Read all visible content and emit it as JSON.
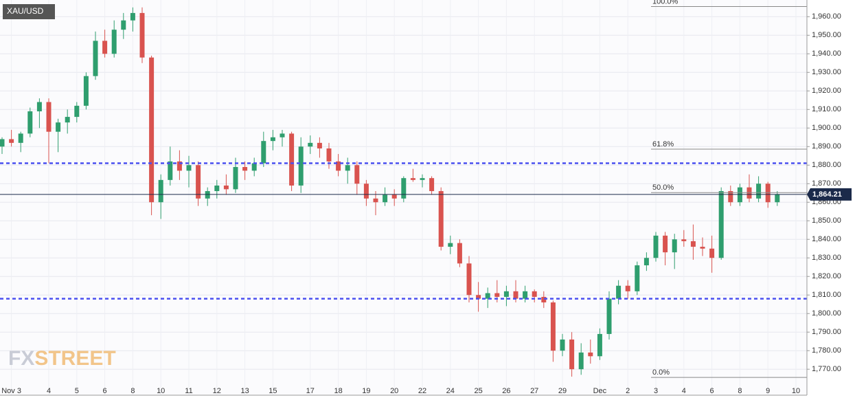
{
  "chart_data": {
    "type": "candlestick",
    "symbol": "XAU/USD",
    "logo_fx": "FX",
    "logo_street": "STREET",
    "up_color": "#2f9e6e",
    "down_color": "#d9534f",
    "grid": true,
    "categories": [
      null,
      "Nov 3",
      null,
      null,
      null,
      "4",
      null,
      null,
      "5",
      null,
      null,
      "6",
      null,
      null,
      "8",
      null,
      null,
      "10",
      null,
      null,
      "11",
      null,
      null,
      "12",
      null,
      null,
      "13",
      null,
      null,
      "15",
      null,
      null,
      null,
      "17",
      null,
      null,
      "18",
      null,
      null,
      "19",
      null,
      null,
      "20",
      null,
      null,
      "22",
      null,
      null,
      "24",
      null,
      null,
      "25",
      null,
      null,
      "26",
      null,
      null,
      "27",
      null,
      null,
      "29",
      null,
      null,
      null,
      "Dec",
      null,
      null,
      "2",
      null,
      null,
      "3",
      null,
      null,
      "4",
      null,
      null,
      "6",
      null,
      null,
      "8",
      null,
      null,
      "9",
      null,
      null,
      "10"
    ],
    "open": [
      1890,
      1894,
      1892,
      1897,
      1909,
      1914,
      1898,
      1903,
      1906,
      1912,
      1928,
      1947,
      1940,
      1953,
      1958,
      1962,
      1938,
      1860,
      1872,
      1882,
      1877,
      1880,
      1862,
      1866,
      1869,
      1867,
      1879,
      1877,
      1881,
      1893,
      1895,
      1897,
      1869,
      1890,
      1892,
      1889,
      1882,
      1877,
      1880,
      1870,
      1862,
      1860,
      1864,
      1862,
      1873,
      1872,
      1873,
      1866,
      1836,
      1838,
      1827,
      1810,
      1808,
      1811,
      1809,
      1812,
      1808,
      1812,
      1809,
      1806,
      1780,
      1786,
      1770,
      1779,
      1777,
      1789,
      1808,
      1815,
      1812,
      1826,
      1830,
      1842,
      1833,
      1840,
      1839,
      1836,
      1835,
      1830,
      1866,
      1860,
      1868,
      1862,
      1870,
      1860,
      null,
      null
    ],
    "high": [
      1895,
      1899,
      1898,
      1911,
      1916,
      1916,
      1905,
      1910,
      1914,
      1930,
      1952,
      1953,
      1958,
      1962,
      1965,
      1965,
      1939,
      1875,
      1890,
      1888,
      1885,
      1882,
      1868,
      1872,
      1875,
      1884,
      1882,
      1884,
      1898,
      1899,
      1899,
      1898,
      1895,
      1896,
      1895,
      1892,
      1886,
      1884,
      1882,
      1872,
      1866,
      1868,
      1867,
      1874,
      1878,
      1875,
      1874,
      1868,
      1842,
      1840,
      1831,
      1817,
      1814,
      1818,
      1815,
      1818,
      1815,
      1813,
      1812,
      1807,
      1789,
      1790,
      1784,
      1786,
      1792,
      1812,
      1818,
      1818,
      1828,
      1833,
      1844,
      1844,
      1843,
      1845,
      1848,
      1841,
      1842,
      1868,
      1869,
      1870,
      1875,
      1874,
      1871,
      1866,
      null,
      null
    ],
    "low": [
      1886,
      1890,
      1887,
      1895,
      1900,
      1881,
      1887,
      1897,
      1903,
      1910,
      1926,
      1938,
      1938,
      1948,
      1952,
      1935,
      1853,
      1851,
      1869,
      1872,
      1868,
      1858,
      1858,
      1862,
      1864,
      1865,
      1872,
      1874,
      1879,
      1888,
      1890,
      1866,
      1865,
      1886,
      1884,
      1878,
      1874,
      1870,
      1864,
      1858,
      1853,
      1858,
      1858,
      1860,
      1871,
      1868,
      1864,
      1834,
      1832,
      1825,
      1806,
      1801,
      1803,
      1806,
      1804,
      1806,
      1806,
      1806,
      1803,
      1774,
      1777,
      1766,
      1767,
      1773,
      1775,
      1786,
      1805,
      1808,
      1810,
      1823,
      1828,
      1826,
      1824,
      1836,
      1829,
      1831,
      1822,
      1829,
      1858,
      1858,
      1860,
      1860,
      1857,
      1858,
      null,
      null
    ],
    "close": [
      1894,
      1892,
      1897,
      1909,
      1914,
      1898,
      1903,
      1906,
      1912,
      1928,
      1947,
      1940,
      1953,
      1958,
      1962,
      1938,
      1860,
      1872,
      1882,
      1877,
      1880,
      1862,
      1866,
      1869,
      1867,
      1879,
      1877,
      1881,
      1893,
      1895,
      1897,
      1869,
      1890,
      1892,
      1889,
      1882,
      1877,
      1880,
      1870,
      1862,
      1860,
      1864,
      1862,
      1873,
      1872,
      1873,
      1866,
      1836,
      1838,
      1827,
      1810,
      1808,
      1811,
      1809,
      1812,
      1808,
      1812,
      1809,
      1806,
      1780,
      1786,
      1770,
      1779,
      1777,
      1789,
      1808,
      1815,
      1812,
      1826,
      1830,
      1842,
      1833,
      1840,
      1839,
      1836,
      1835,
      1830,
      1866,
      1860,
      1868,
      1862,
      1870,
      1860,
      1864.21,
      null,
      null
    ],
    "last_price": 1864.21,
    "last_price_label": "1,864.21",
    "last_price_color": "#1b2a4a",
    "levels": [
      1881,
      1808
    ],
    "level_color": "#4a50f0",
    "fib_levels": [
      {
        "value": 1965.5,
        "label": "100.0%"
      },
      {
        "value": 1888.6,
        "label": "61.8%"
      },
      {
        "value": 1865.2,
        "label": "50.0%"
      },
      {
        "value": 1765.6,
        "label": "0.0%"
      }
    ],
    "ylim": [
      1756,
      1969
    ],
    "yticks": [
      {
        "value": 1770,
        "label": "1,770.00"
      },
      {
        "value": 1780,
        "label": "1,780.00"
      },
      {
        "value": 1790,
        "label": "1,790.00"
      },
      {
        "value": 1800,
        "label": "1,800.00"
      },
      {
        "value": 1810,
        "label": "1,810.00"
      },
      {
        "value": 1820,
        "label": "1,820.00"
      },
      {
        "value": 1830,
        "label": "1,830.00"
      },
      {
        "value": 1840,
        "label": "1,840.00"
      },
      {
        "value": 1850,
        "label": "1,850.00"
      },
      {
        "value": 1860,
        "label": "1,860.00"
      },
      {
        "value": 1870,
        "label": "1,870.00"
      },
      {
        "value": 1880,
        "label": "1,880.00"
      },
      {
        "value": 1890,
        "label": "1,890.00"
      },
      {
        "value": 1900,
        "label": "1,900.00"
      },
      {
        "value": 1910,
        "label": "1,910.00"
      },
      {
        "value": 1920,
        "label": "1,920.00"
      },
      {
        "value": 1930,
        "label": "1,930.00"
      },
      {
        "value": 1940,
        "label": "1,940.00"
      },
      {
        "value": 1950,
        "label": "1,950.00"
      },
      {
        "value": 1960,
        "label": "1,960.00"
      }
    ]
  }
}
